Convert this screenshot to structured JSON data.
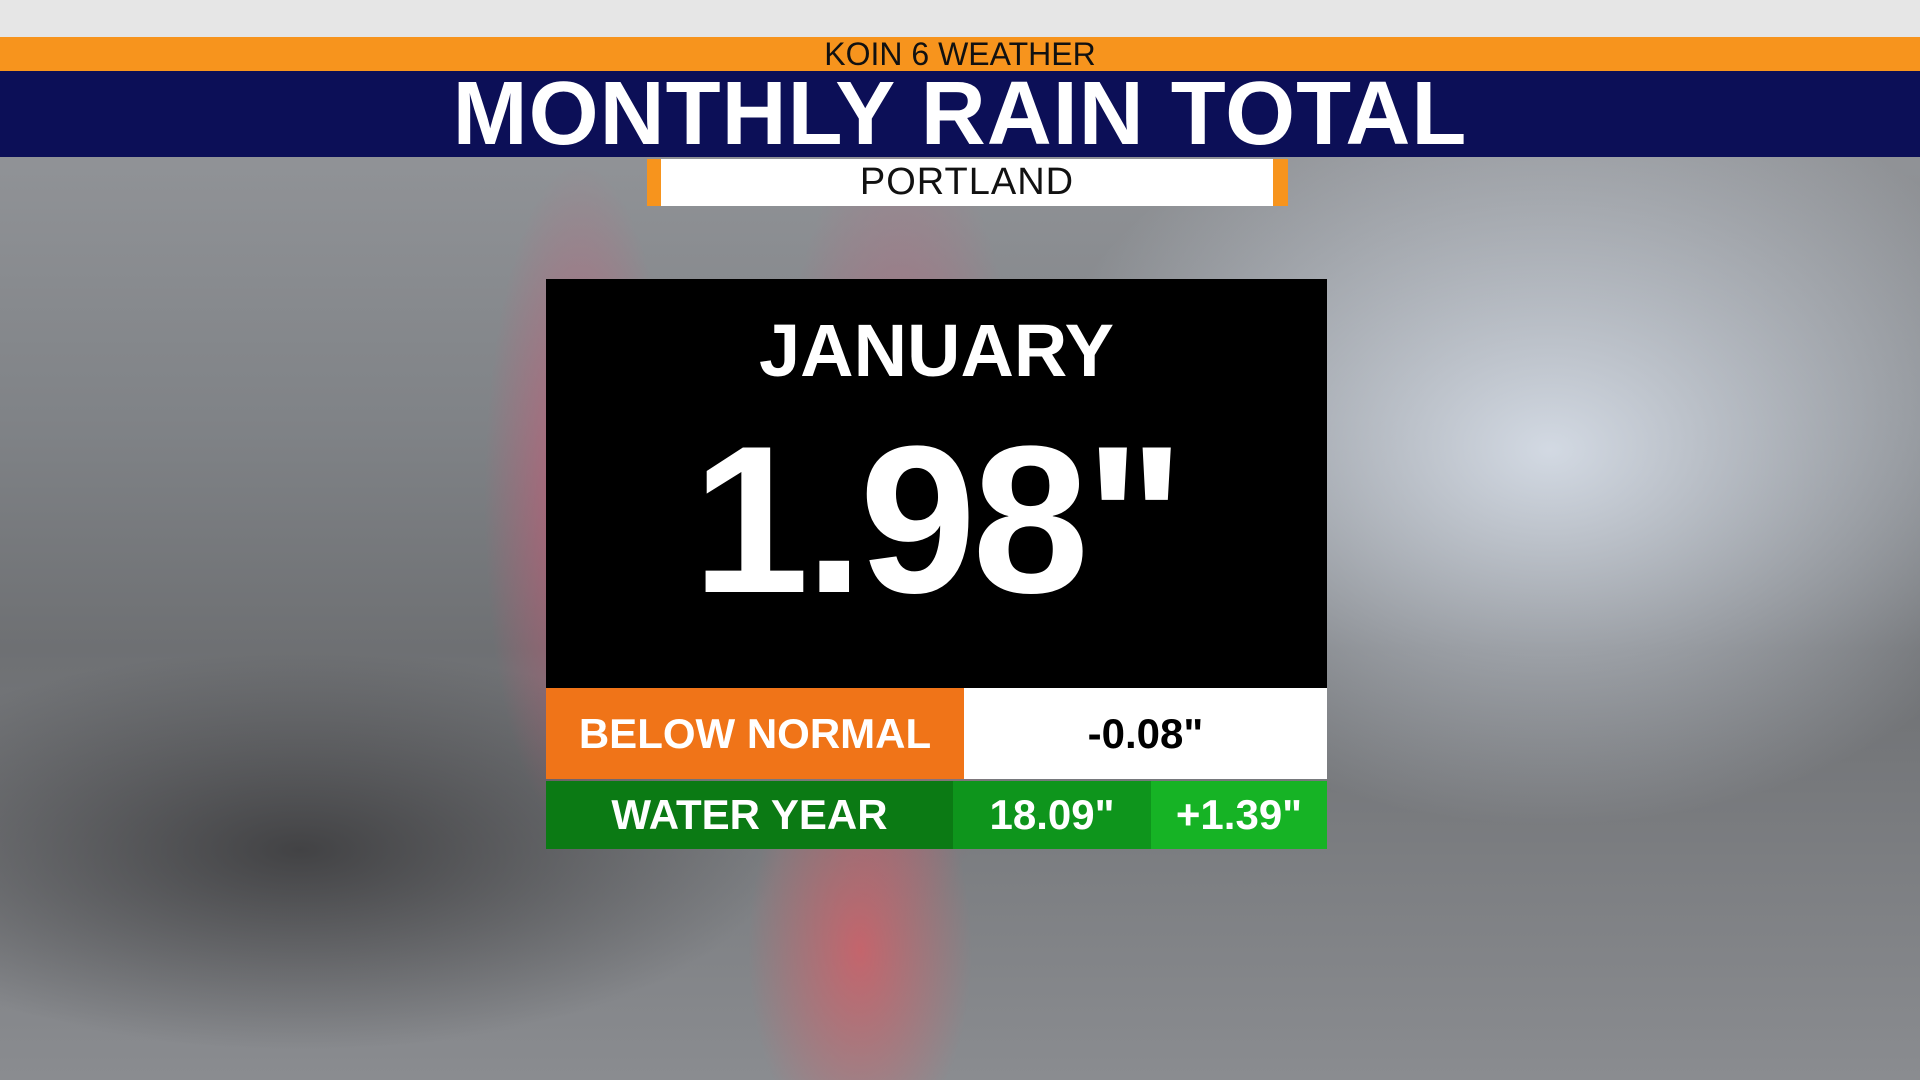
{
  "header": {
    "brand": "KOIN 6 WEATHER",
    "title": "MONTHLY RAIN TOTAL",
    "location": "PORTLAND"
  },
  "panel": {
    "month": "JANUARY",
    "total": "1.98\"",
    "below_normal": {
      "label": "BELOW NORMAL",
      "value": "-0.08\""
    },
    "water_year": {
      "label": "WATER YEAR",
      "value": "18.09\"",
      "departure": "+1.39\""
    }
  }
}
